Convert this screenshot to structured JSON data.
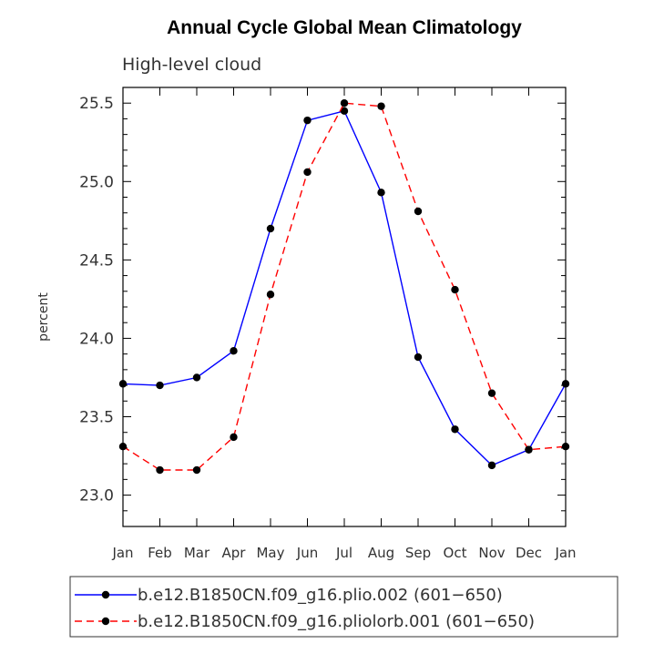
{
  "chart_data": {
    "type": "line",
    "title": "Annual Cycle Global Mean Climatology",
    "subtitle": "High-level cloud",
    "xlabel": "",
    "ylabel": "percent",
    "categories": [
      "Jan",
      "Feb",
      "Mar",
      "Apr",
      "May",
      "Jun",
      "Jul",
      "Aug",
      "Sep",
      "Oct",
      "Nov",
      "Dec",
      "Jan"
    ],
    "ylim": [
      22.8,
      25.6
    ],
    "yticks": [
      "23.0",
      "23.5",
      "24.0",
      "24.5",
      "25.0",
      "25.5"
    ],
    "series": [
      {
        "name": "b.e12.B1850CN.f09_g16.plio.002 (601−650)",
        "color": "#0000ff",
        "dash": "solid",
        "values": [
          23.71,
          23.7,
          23.75,
          23.92,
          24.7,
          25.39,
          25.45,
          24.93,
          23.88,
          23.42,
          23.19,
          23.29,
          23.71
        ]
      },
      {
        "name": "b.e12.B1850CN.f09_g16.pliolorb.001 (601−650)",
        "color": "#ff0000",
        "dash": "dashed",
        "values": [
          23.31,
          23.16,
          23.16,
          23.37,
          24.28,
          25.06,
          25.5,
          25.48,
          24.81,
          24.31,
          23.65,
          23.29,
          23.31
        ]
      }
    ]
  }
}
